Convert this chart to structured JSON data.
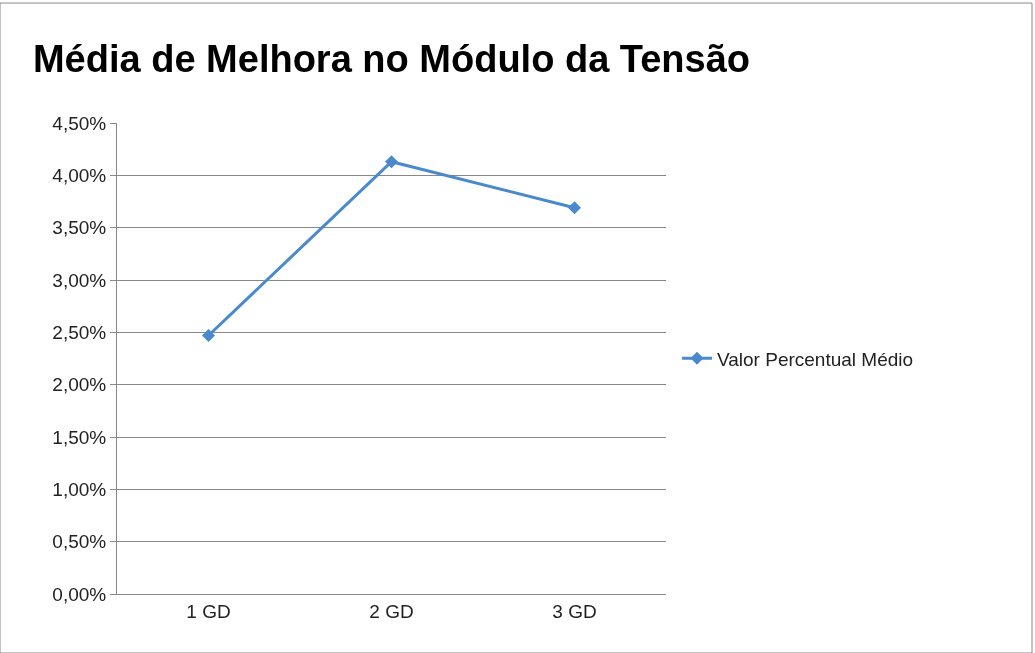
{
  "chart_data": {
    "type": "line",
    "title": "Média de Melhora no Módulo da Tensão",
    "categories": [
      "1 GD",
      "2 GD",
      "3 GD"
    ],
    "series": [
      {
        "name": "Valor Percentual Médio",
        "color": "#4a89cc",
        "values": [
          2.47,
          4.13,
          3.69
        ]
      }
    ],
    "ylim": [
      0,
      4.5
    ],
    "yticks": [
      {
        "value": 0,
        "label": "0,00%"
      },
      {
        "value": 0.5,
        "label": "0,50%"
      },
      {
        "value": 1,
        "label": "1,00%"
      },
      {
        "value": 1.5,
        "label": "1,50%"
      },
      {
        "value": 2,
        "label": "2,00%"
      },
      {
        "value": 2.5,
        "label": "2,50%"
      },
      {
        "value": 3,
        "label": "3,00%"
      },
      {
        "value": 3.5,
        "label": "3,50%"
      },
      {
        "value": 4,
        "label": "4,00%"
      },
      {
        "value": 4.5,
        "label": "4,50%"
      }
    ],
    "grid": "y",
    "legend": "right",
    "marker": "diamond",
    "line_style": "solid"
  }
}
